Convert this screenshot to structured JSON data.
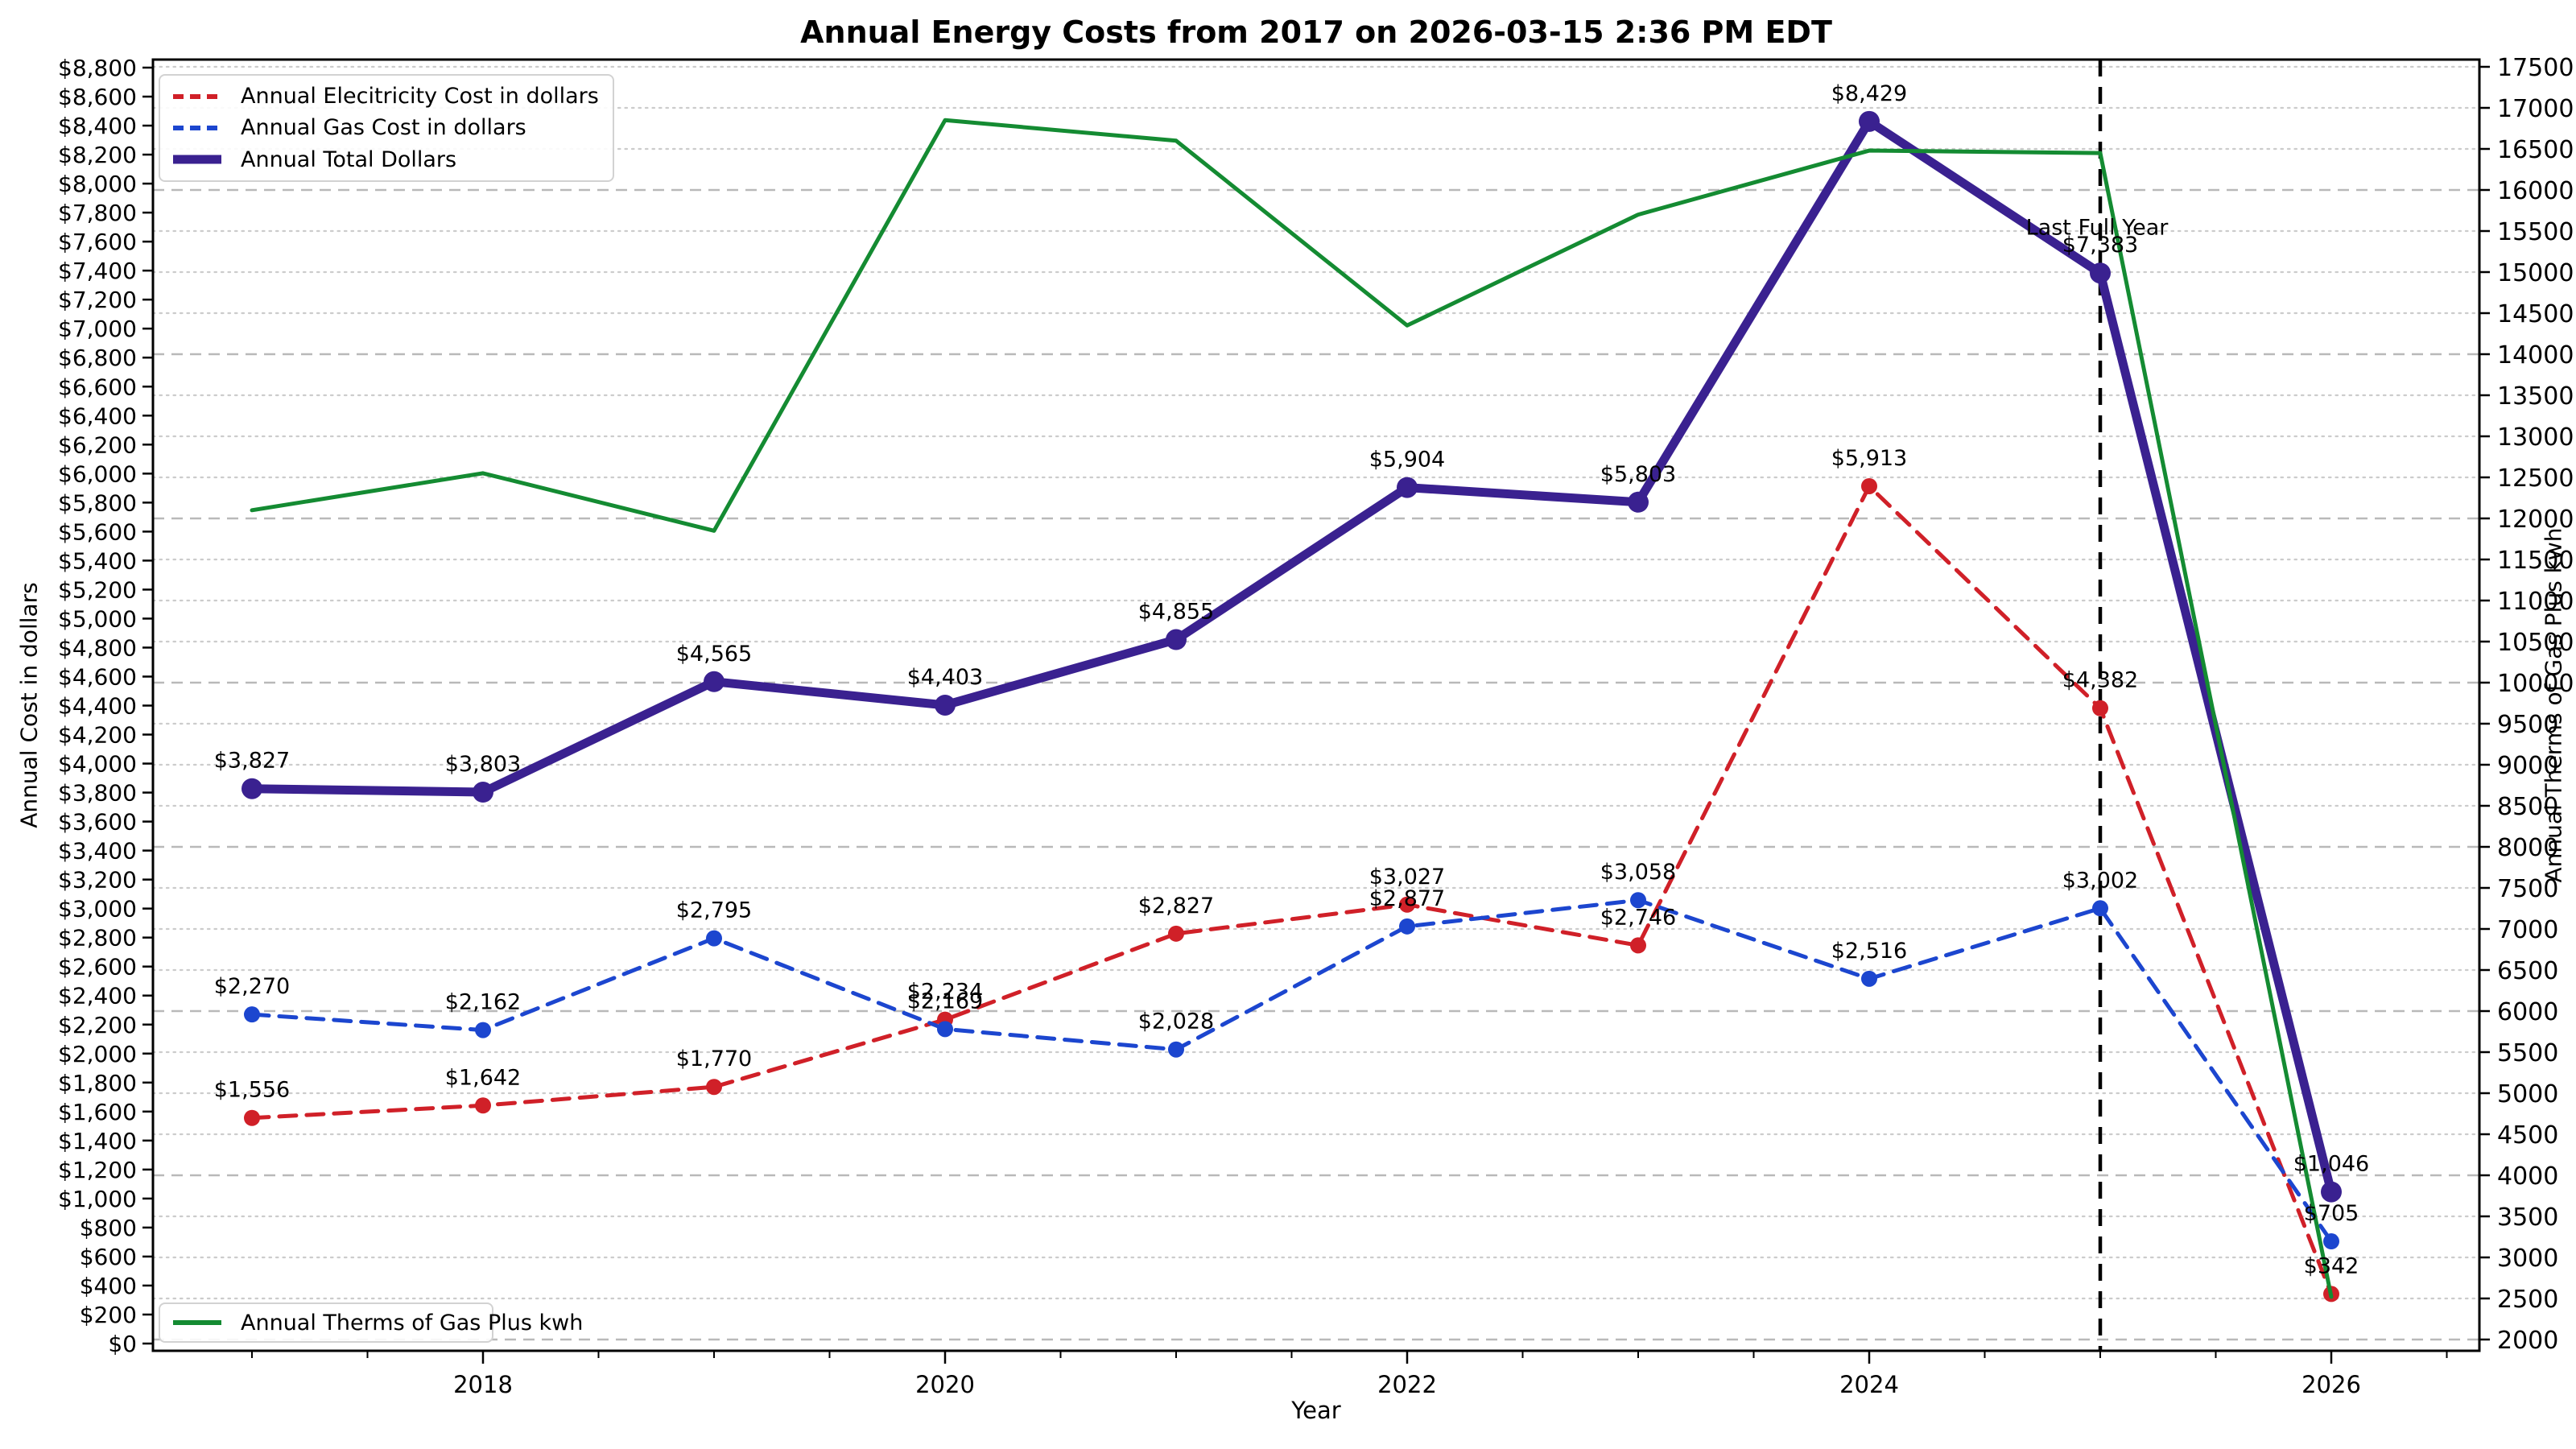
{
  "chart_data": {
    "type": "line",
    "title": "Annual Energy Costs from 2017 on 2026-03-15 2:36 PM EDT",
    "xlabel": "Year",
    "ylabel_left": "Annual Cost in dollars",
    "ylabel_right": "Annual Therms of Gas Plus kwh",
    "x": [
      2017,
      2018,
      2019,
      2020,
      2021,
      2022,
      2023,
      2024,
      2025,
      2026
    ],
    "x_tick_labels": [
      "2018",
      "2020",
      "2022",
      "2024",
      "2026"
    ],
    "left_axis": {
      "min": 0,
      "max": 8800,
      "tick_step": 200,
      "prefix": "$"
    },
    "right_axis": {
      "min": 2000,
      "max": 17500,
      "tick_step": 500,
      "dashed_grid_multiple": 2000
    },
    "grid": "horizontal only; dotted every 500 right-axis units, dashed every 2000",
    "legend_top_position": "upper-left",
    "legend_bottom_position": "lower-left",
    "series": [
      {
        "name": "Annual Elecitricity Cost in dollars",
        "axis": "left",
        "color": "#d02028",
        "line": "dashed",
        "marker": "circle",
        "values": [
          1556,
          1642,
          1770,
          2234,
          2827,
          3027,
          2746,
          5913,
          4382,
          342
        ],
        "labels": [
          "$1,556",
          "$1,642",
          "$1,770",
          "$2,234",
          "$2,827",
          "$3,027",
          "$2,746",
          "$5,913",
          "$4,382",
          "$342"
        ]
      },
      {
        "name": "Annual Gas Cost in dollars",
        "axis": "left",
        "color": "#1c46cf",
        "line": "dashed",
        "marker": "circle",
        "values": [
          2270,
          2162,
          2795,
          2169,
          2028,
          2877,
          3058,
          2516,
          3002,
          705
        ],
        "labels": [
          "$2,270",
          "$2,162",
          "$2,795",
          "$2,169",
          "$2,028",
          "$2,877",
          "$3,058",
          "$2,516",
          "$3,002",
          "$705"
        ]
      },
      {
        "name": "Annual Total Dollars",
        "axis": "left",
        "color": "#3a2190",
        "line": "solid-thick",
        "marker": "circle",
        "values": [
          3827,
          3803,
          4565,
          4403,
          4855,
          5904,
          5803,
          8429,
          7383,
          1046
        ],
        "labels": [
          "$3,827",
          "$3,803",
          "$4,565",
          "$4,403",
          "$4,855",
          "$5,904",
          "$5,803",
          "$8,429",
          "$7,383",
          "$1,046"
        ]
      },
      {
        "name": "Annual Therms of Gas Plus kwh",
        "axis": "right",
        "color": "#148b32",
        "line": "solid",
        "marker": "none",
        "values": [
          12100,
          12550,
          11850,
          16850,
          16600,
          14350,
          15700,
          16480,
          16450,
          2520
        ]
      }
    ],
    "annotation": {
      "text": "Last Full Year",
      "x": 2025
    },
    "legend_top": [
      "Annual Elecitricity Cost in dollars",
      "Annual Gas Cost in dollars",
      "Annual Total Dollars"
    ],
    "legend_bottom": [
      "Annual Therms of Gas Plus kwh"
    ]
  }
}
